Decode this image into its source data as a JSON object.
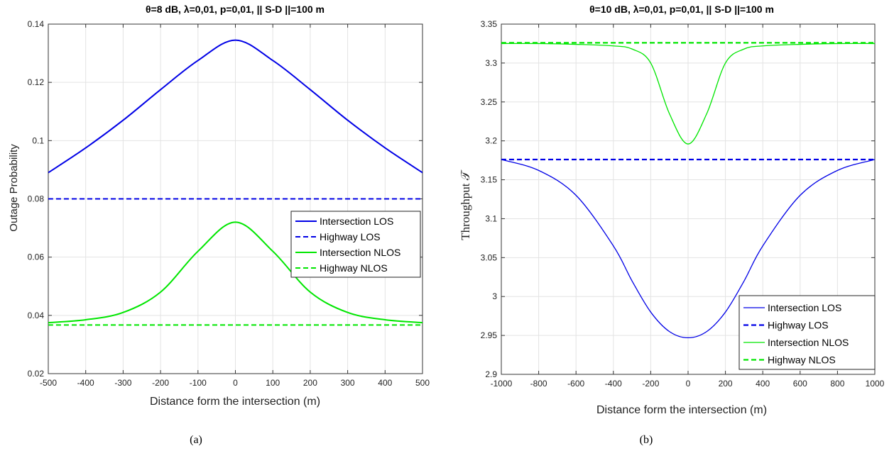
{
  "chart_data": [
    {
      "type": "line",
      "title": "θ=8 dB, λ=0,01, p=0,01, || S-D ||=100 m",
      "xlabel": "Distance form the intersection (m)",
      "ylabel": "Outage Probability",
      "caption": "(a)",
      "xlim": [
        -500,
        500
      ],
      "ylim": [
        0.02,
        0.14
      ],
      "xticks": [
        -500,
        -400,
        -300,
        -200,
        -100,
        0,
        100,
        200,
        300,
        400,
        500
      ],
      "yticks": [
        0.02,
        0.04,
        0.06,
        0.08,
        0.1,
        0.12,
        0.14
      ],
      "xtick_labels": [
        "-500",
        "-400",
        "-300",
        "-200",
        "-100",
        "0",
        "100",
        "200",
        "300",
        "400",
        "500"
      ],
      "ytick_labels": [
        "0.02",
        "0.04",
        "0.06",
        "0.08",
        "0.1",
        "0.12",
        "0.14"
      ],
      "grid": true,
      "legend_position": "center-right",
      "x": [
        -500,
        -400,
        -300,
        -200,
        -100,
        0,
        100,
        200,
        300,
        400,
        500
      ],
      "series": [
        {
          "name": "Intersection LOS",
          "color": "#0000e6",
          "dash": "solid",
          "width": 2,
          "values": [
            0.089,
            0.0975,
            0.107,
            0.1175,
            0.1275,
            0.1345,
            0.1275,
            0.1175,
            0.107,
            0.0975,
            0.089
          ]
        },
        {
          "name": "Highway LOS",
          "color": "#0000e6",
          "dash": "dashed",
          "width": 2,
          "values": [
            0.08,
            0.08,
            0.08,
            0.08,
            0.08,
            0.08,
            0.08,
            0.08,
            0.08,
            0.08,
            0.08
          ]
        },
        {
          "name": "Intersection NLOS",
          "color": "#00e600",
          "dash": "solid",
          "width": 2,
          "values": [
            0.0375,
            0.0385,
            0.041,
            0.048,
            0.062,
            0.072,
            0.062,
            0.048,
            0.041,
            0.0385,
            0.0375
          ]
        },
        {
          "name": "Highway NLOS",
          "color": "#00e600",
          "dash": "dashed",
          "width": 2,
          "values": [
            0.0367,
            0.0367,
            0.0367,
            0.0367,
            0.0367,
            0.0367,
            0.0367,
            0.0367,
            0.0367,
            0.0367,
            0.0367
          ]
        }
      ]
    },
    {
      "type": "line",
      "title": "θ=10 dB, λ=0,01, p=0,01, || S-D ||=100 m",
      "xlabel": "Distance form the intersection (m)",
      "ylabel": "Throughput 𝒯",
      "caption": "(b)",
      "xlim": [
        -1000,
        1000
      ],
      "ylim": [
        2.9,
        3.35
      ],
      "xticks": [
        -1000,
        -800,
        -600,
        -400,
        -200,
        0,
        200,
        400,
        600,
        800,
        1000
      ],
      "yticks": [
        2.9,
        2.95,
        3.0,
        3.05,
        3.1,
        3.15,
        3.2,
        3.25,
        3.3,
        3.35
      ],
      "xtick_labels": [
        "-1000",
        "-800",
        "-600",
        "-400",
        "-200",
        "0",
        "200",
        "400",
        "600",
        "800",
        "1000"
      ],
      "ytick_labels": [
        "2.9",
        "2.95",
        "3",
        "3.05",
        "3.1",
        "3.15",
        "3.2",
        "3.25",
        "3.3",
        "3.35"
      ],
      "grid": true,
      "legend_position": "bottom-right",
      "x": [
        -1000,
        -800,
        -600,
        -400,
        -300,
        -200,
        -100,
        0,
        100,
        200,
        300,
        400,
        600,
        800,
        1000
      ],
      "series": [
        {
          "name": "Intersection LOS",
          "color": "#0000e6",
          "dash": "solid",
          "width": 1.3,
          "values": [
            3.176,
            3.162,
            3.13,
            3.065,
            3.02,
            2.98,
            2.955,
            2.947,
            2.955,
            2.98,
            3.02,
            3.065,
            3.13,
            3.162,
            3.176
          ]
        },
        {
          "name": "Highway LOS",
          "color": "#0000e6",
          "dash": "dashed",
          "width": 2.2,
          "values": [
            3.176,
            3.176,
            3.176,
            3.176,
            3.176,
            3.176,
            3.176,
            3.176,
            3.176,
            3.176,
            3.176,
            3.176,
            3.176,
            3.176,
            3.176
          ]
        },
        {
          "name": "Intersection NLOS",
          "color": "#00e600",
          "dash": "solid",
          "width": 1.3,
          "values": [
            3.325,
            3.325,
            3.324,
            3.322,
            3.318,
            3.3,
            3.235,
            3.196,
            3.235,
            3.3,
            3.318,
            3.322,
            3.324,
            3.325,
            3.325
          ]
        },
        {
          "name": "Highway NLOS",
          "color": "#00e600",
          "dash": "dashed",
          "width": 2.2,
          "values": [
            3.326,
            3.326,
            3.326,
            3.326,
            3.326,
            3.326,
            3.326,
            3.326,
            3.326,
            3.326,
            3.326,
            3.326,
            3.326,
            3.326,
            3.326
          ]
        }
      ]
    }
  ]
}
